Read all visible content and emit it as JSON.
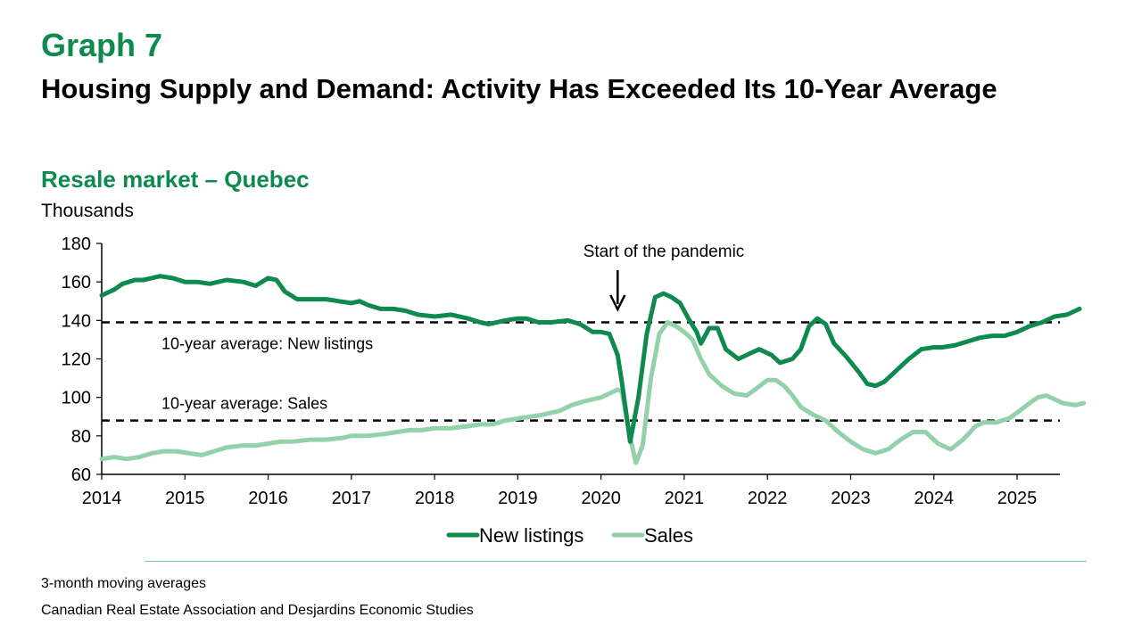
{
  "header": {
    "graph_label": "Graph 7",
    "title": "Housing Supply and Demand: Activity Has Exceeded Its 10-Year Average"
  },
  "footer": {
    "note": "3-month moving averages",
    "source": "Canadian Real Estate Association and Desjardins Economic Studies"
  },
  "colors": {
    "accent": "#0e8a4f",
    "new_listings": "#0e8a4f",
    "sales": "#93d1aa"
  },
  "chart_data": {
    "type": "line",
    "title": "Resale market – Quebec",
    "ylabel": "Thousands",
    "xlabel": "",
    "ylim": [
      60,
      180
    ],
    "yticks": [
      60,
      80,
      100,
      120,
      140,
      160,
      180
    ],
    "xlim": [
      2014,
      2025.5
    ],
    "xticks": [
      "2014",
      "2015",
      "2016",
      "2017",
      "2018",
      "2019",
      "2020",
      "2021",
      "2022",
      "2023",
      "2024",
      "2025"
    ],
    "grid": false,
    "legend_position": "bottom",
    "series": [
      {
        "name": "New listings",
        "color": "#0e8a4f",
        "points": [
          [
            2014,
            153
          ],
          [
            2014.15,
            156
          ],
          [
            2014.25,
            159
          ],
          [
            2014.4,
            161
          ],
          [
            2014.5,
            161
          ],
          [
            2014.6,
            162
          ],
          [
            2014.7,
            163
          ],
          [
            2014.85,
            162
          ],
          [
            2015,
            160
          ],
          [
            2015.15,
            160
          ],
          [
            2015.3,
            159
          ],
          [
            2015.5,
            161
          ],
          [
            2015.7,
            160
          ],
          [
            2015.85,
            158
          ],
          [
            2016,
            162
          ],
          [
            2016.1,
            161
          ],
          [
            2016.2,
            155
          ],
          [
            2016.35,
            151
          ],
          [
            2016.5,
            151
          ],
          [
            2016.7,
            151
          ],
          [
            2016.85,
            150
          ],
          [
            2017,
            149
          ],
          [
            2017.1,
            150
          ],
          [
            2017.2,
            148
          ],
          [
            2017.35,
            146
          ],
          [
            2017.5,
            146
          ],
          [
            2017.65,
            145
          ],
          [
            2017.8,
            143
          ],
          [
            2018,
            142
          ],
          [
            2018.2,
            143
          ],
          [
            2018.4,
            141
          ],
          [
            2018.55,
            139
          ],
          [
            2018.65,
            138
          ],
          [
            2018.85,
            140
          ],
          [
            2019,
            141
          ],
          [
            2019.1,
            141
          ],
          [
            2019.25,
            139
          ],
          [
            2019.4,
            139
          ],
          [
            2019.6,
            140
          ],
          [
            2019.75,
            138
          ],
          [
            2019.9,
            134
          ],
          [
            2020,
            134
          ],
          [
            2020.1,
            133
          ],
          [
            2020.2,
            122
          ],
          [
            2020.25,
            108
          ],
          [
            2020.35,
            77
          ],
          [
            2020.45,
            100
          ],
          [
            2020.55,
            133
          ],
          [
            2020.65,
            152
          ],
          [
            2020.75,
            154
          ],
          [
            2020.85,
            152
          ],
          [
            2020.95,
            149
          ],
          [
            2021.05,
            141
          ],
          [
            2021.15,
            134
          ],
          [
            2021.2,
            128
          ],
          [
            2021.3,
            136
          ],
          [
            2021.4,
            136
          ],
          [
            2021.5,
            125
          ],
          [
            2021.65,
            120
          ],
          [
            2021.8,
            123
          ],
          [
            2021.9,
            125
          ],
          [
            2022.05,
            122
          ],
          [
            2022.15,
            118
          ],
          [
            2022.3,
            120
          ],
          [
            2022.4,
            125
          ],
          [
            2022.5,
            137
          ],
          [
            2022.6,
            141
          ],
          [
            2022.7,
            138
          ],
          [
            2022.8,
            128
          ],
          [
            2022.95,
            121
          ],
          [
            2023.1,
            113
          ],
          [
            2023.2,
            107
          ],
          [
            2023.3,
            106
          ],
          [
            2023.4,
            108
          ],
          [
            2023.55,
            114
          ],
          [
            2023.7,
            120
          ],
          [
            2023.85,
            125
          ],
          [
            2024,
            126
          ],
          [
            2024.1,
            126
          ],
          [
            2024.25,
            127
          ],
          [
            2024.4,
            129
          ],
          [
            2024.55,
            131
          ],
          [
            2024.7,
            132
          ],
          [
            2024.85,
            132
          ],
          [
            2025,
            134
          ],
          [
            2025.15,
            137
          ],
          [
            2025.3,
            139
          ],
          [
            2025.45,
            142
          ],
          [
            2025.6,
            143
          ],
          [
            2025.75,
            146
          ]
        ]
      },
      {
        "name": "Sales",
        "color": "#93d1aa",
        "points": [
          [
            2014,
            68
          ],
          [
            2014.15,
            69
          ],
          [
            2014.3,
            68
          ],
          [
            2014.45,
            69
          ],
          [
            2014.6,
            71
          ],
          [
            2014.75,
            72
          ],
          [
            2014.9,
            72
          ],
          [
            2015.05,
            71
          ],
          [
            2015.2,
            70
          ],
          [
            2015.35,
            72
          ],
          [
            2015.5,
            74
          ],
          [
            2015.7,
            75
          ],
          [
            2015.85,
            75
          ],
          [
            2016,
            76
          ],
          [
            2016.15,
            77
          ],
          [
            2016.3,
            77
          ],
          [
            2016.5,
            78
          ],
          [
            2016.7,
            78
          ],
          [
            2016.9,
            79
          ],
          [
            2017,
            80
          ],
          [
            2017.2,
            80
          ],
          [
            2017.4,
            81
          ],
          [
            2017.55,
            82
          ],
          [
            2017.7,
            83
          ],
          [
            2017.85,
            83
          ],
          [
            2018,
            84
          ],
          [
            2018.2,
            84
          ],
          [
            2018.4,
            85
          ],
          [
            2018.55,
            86
          ],
          [
            2018.7,
            86
          ],
          [
            2018.85,
            88
          ],
          [
            2019,
            89
          ],
          [
            2019.15,
            90
          ],
          [
            2019.3,
            91
          ],
          [
            2019.5,
            93
          ],
          [
            2019.65,
            96
          ],
          [
            2019.8,
            98
          ],
          [
            2020,
            100
          ],
          [
            2020.1,
            102
          ],
          [
            2020.2,
            104
          ],
          [
            2020.25,
            103
          ],
          [
            2020.35,
            79
          ],
          [
            2020.42,
            66
          ],
          [
            2020.5,
            75
          ],
          [
            2020.6,
            110
          ],
          [
            2020.7,
            133
          ],
          [
            2020.8,
            139
          ],
          [
            2020.9,
            137
          ],
          [
            2021,
            134
          ],
          [
            2021.1,
            130
          ],
          [
            2021.2,
            120
          ],
          [
            2021.3,
            112
          ],
          [
            2021.45,
            106
          ],
          [
            2021.6,
            102
          ],
          [
            2021.75,
            101
          ],
          [
            2021.85,
            104
          ],
          [
            2022,
            109
          ],
          [
            2022.1,
            109
          ],
          [
            2022.2,
            106
          ],
          [
            2022.3,
            101
          ],
          [
            2022.4,
            95
          ],
          [
            2022.55,
            91
          ],
          [
            2022.7,
            88
          ],
          [
            2022.85,
            82
          ],
          [
            2023,
            77
          ],
          [
            2023.15,
            73
          ],
          [
            2023.3,
            71
          ],
          [
            2023.45,
            73
          ],
          [
            2023.6,
            78
          ],
          [
            2023.75,
            82
          ],
          [
            2023.9,
            82
          ],
          [
            2024.05,
            76
          ],
          [
            2024.2,
            73
          ],
          [
            2024.35,
            78
          ],
          [
            2024.5,
            85
          ],
          [
            2024.6,
            87
          ],
          [
            2024.75,
            87
          ],
          [
            2024.9,
            89
          ],
          [
            2025,
            92
          ],
          [
            2025.15,
            97
          ],
          [
            2025.25,
            100
          ],
          [
            2025.35,
            101
          ],
          [
            2025.45,
            99
          ],
          [
            2025.55,
            97
          ],
          [
            2025.7,
            96
          ],
          [
            2025.8,
            97
          ]
        ]
      }
    ],
    "reference_lines": [
      {
        "label": "10-year average: New listings",
        "value": 139
      },
      {
        "label": "10-year average: Sales",
        "value": 88
      }
    ],
    "annotation": {
      "text": "Start of the pandemic",
      "x": 2020.2
    }
  }
}
